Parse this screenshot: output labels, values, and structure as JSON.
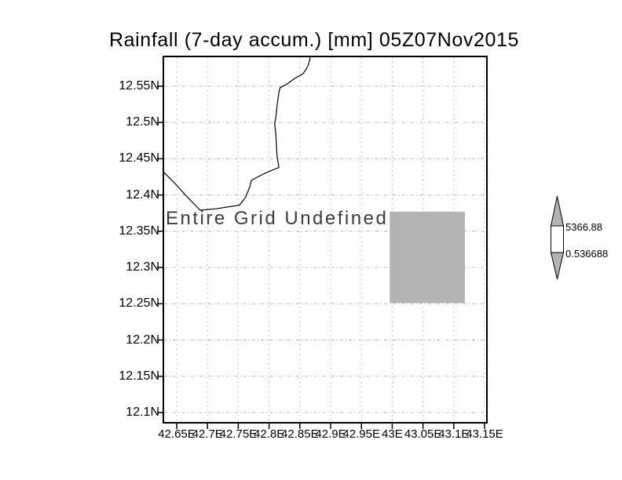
{
  "chart_data": {
    "type": "heatmap",
    "title": "Rainfall (7-day accum.) [mm] 05Z07Nov2015",
    "status_note": "Entire Grid Undefined",
    "values": "undefined (no rainfall data plotted; entire grid undefined)",
    "grid": true,
    "x_axis": {
      "tick_labels": [
        "42.65E",
        "42.7E",
        "42.75E",
        "42.8E",
        "42.85E",
        "42.9E",
        "42.95E",
        "43E",
        "43.05E",
        "43.1E",
        "43.15E"
      ],
      "tick_values": [
        42.65,
        42.7,
        42.75,
        42.8,
        42.85,
        42.9,
        42.95,
        43.0,
        43.05,
        43.1,
        43.15
      ],
      "range": [
        42.6283,
        43.1538
      ]
    },
    "y_axis": {
      "tick_labels": [
        "12.55N",
        "12.5N",
        "12.45N",
        "12.4N",
        "12.35N",
        "12.3N",
        "12.25N",
        "12.2N",
        "12.15N",
        "12.1N"
      ],
      "tick_values": [
        12.55,
        12.5,
        12.45,
        12.4,
        12.35,
        12.3,
        12.25,
        12.2,
        12.15,
        12.1
      ],
      "range": [
        12.0859,
        12.591
      ]
    },
    "undefined_region": {
      "lon_min": 42.996,
      "lon_max": 43.118,
      "lat_min": 12.251,
      "lat_max": 12.377
    },
    "coastline_lonlat": [
      [
        42.867,
        12.591
      ],
      [
        42.866,
        12.586
      ],
      [
        42.863,
        12.578
      ],
      [
        42.86,
        12.573
      ],
      [
        42.855,
        12.567
      ],
      [
        42.844,
        12.562
      ],
      [
        42.829,
        12.553
      ],
      [
        42.818,
        12.548
      ],
      [
        42.816,
        12.542
      ],
      [
        42.813,
        12.523
      ],
      [
        42.811,
        12.507
      ],
      [
        42.809,
        12.498
      ],
      [
        42.811,
        12.485
      ],
      [
        42.812,
        12.468
      ],
      [
        42.813,
        12.453
      ],
      [
        42.816,
        12.438
      ],
      [
        42.793,
        12.43
      ],
      [
        42.771,
        12.42
      ],
      [
        42.769,
        12.412
      ],
      [
        42.762,
        12.397
      ],
      [
        42.752,
        12.386
      ],
      [
        42.714,
        12.381
      ],
      [
        42.688,
        12.379
      ],
      [
        42.663,
        12.401
      ],
      [
        42.646,
        12.417
      ],
      [
        42.627,
        12.433
      ]
    ],
    "colorbar": {
      "max_label": "5366.88",
      "min_label": "0.536688",
      "segments": [
        "gray-arrow-up",
        "white-band",
        "gray-arrow-down"
      ]
    },
    "colors": {
      "undefined_gray": "#b3b3b3",
      "grid_gray": "#b4b4b4",
      "frame": "#000000",
      "annotation_text": "#3c3c3c",
      "background": "#ffffff"
    }
  }
}
